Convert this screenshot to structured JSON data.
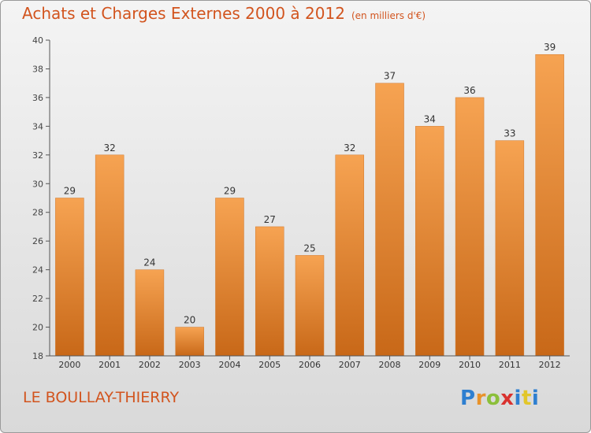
{
  "chart_data": {
    "type": "bar",
    "title": "Achats et Charges Externes 2000 à 2012",
    "subtitle": "(en milliers d'€)",
    "categories": [
      "2000",
      "2001",
      "2002",
      "2003",
      "2004",
      "2005",
      "2006",
      "2007",
      "2008",
      "2009",
      "2010",
      "2011",
      "2012"
    ],
    "values": [
      29,
      32,
      24,
      20,
      29,
      27,
      25,
      32,
      37,
      34,
      36,
      33,
      39
    ],
    "ylim": [
      18,
      40
    ],
    "yticks": [
      18,
      20,
      22,
      24,
      26,
      28,
      30,
      32,
      34,
      36,
      38,
      40
    ],
    "xlabel": "",
    "ylabel": "",
    "grid": false,
    "bar_color_top": "#f6a352",
    "bar_color_bottom": "#c86818"
  },
  "footer": {
    "commune": "LE BOULLAY-THIERRY",
    "logo_text": "Proxiti"
  },
  "colors": {
    "title": "#d2541e",
    "axis": "#555555"
  }
}
